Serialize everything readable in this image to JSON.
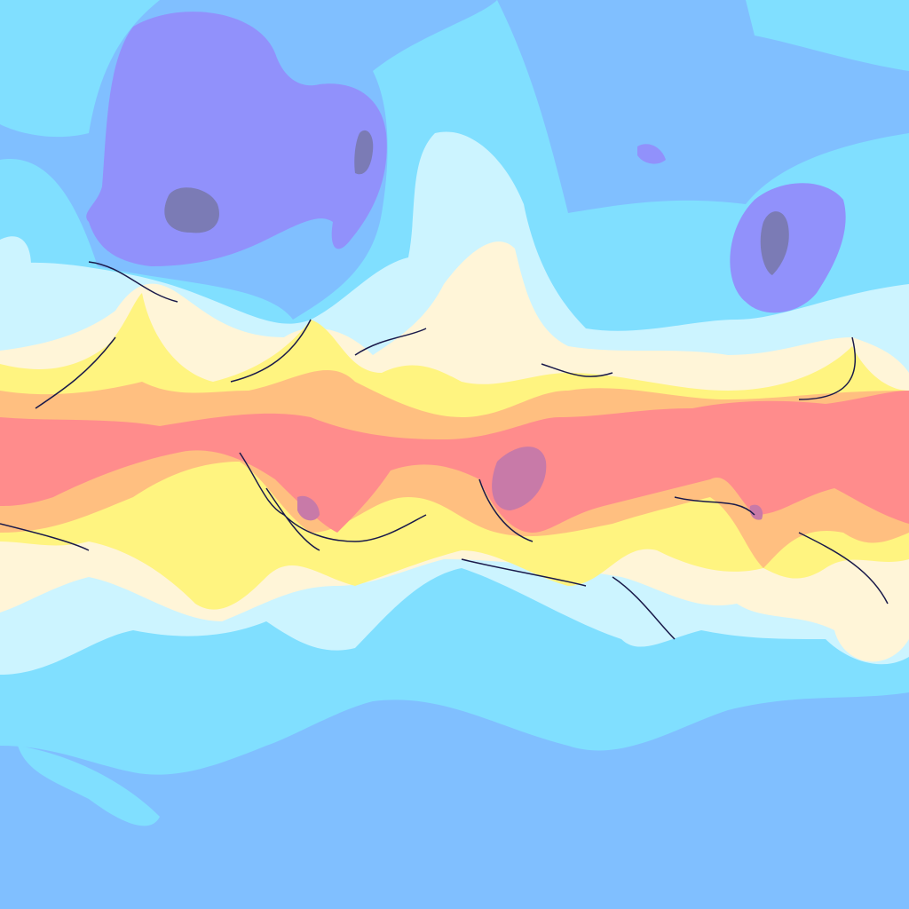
{
  "map": {
    "palette": {
      "level_1": "#7b7bb5",
      "level_2": "#9191fb",
      "level_3": "#80bfff",
      "level_4": "#80dfff",
      "level_5": "#ccf4ff",
      "level_6": "#fff5d8",
      "level_7": "#fff480",
      "level_8": "#ffbf80",
      "level_9": "#ff8c8c",
      "level_10": "#c87aa8"
    },
    "contour_line_color": "#1a1a4a"
  }
}
